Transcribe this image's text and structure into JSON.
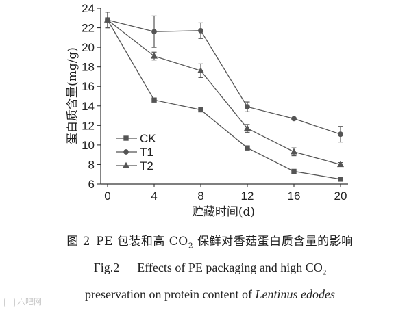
{
  "chart_data": {
    "type": "line",
    "ylabel": "蛋白质含量(mg/g)",
    "xlabel": "贮藏时间(d)",
    "x": [
      0,
      4,
      8,
      12,
      16,
      20
    ],
    "x_ticks": [
      "0",
      "4",
      "8",
      "12",
      "16",
      "20"
    ],
    "y_ticks": [
      "6",
      "8",
      "10",
      "12",
      "14",
      "16",
      "18",
      "20",
      "22",
      "24"
    ],
    "xlim": [
      0,
      20
    ],
    "ylim": [
      6,
      24
    ],
    "grid": false,
    "legend_position": "bottom-left",
    "series": [
      {
        "name": "CK",
        "marker": "square",
        "values": [
          22.8,
          14.6,
          13.6,
          9.7,
          7.3,
          6.5
        ],
        "errors": [
          0.8,
          0.1,
          0.1,
          0.2,
          0.1,
          0.1
        ]
      },
      {
        "name": "T1",
        "marker": "circle",
        "values": [
          22.8,
          21.6,
          21.7,
          13.9,
          12.7,
          11.1
        ],
        "errors": [
          0.8,
          1.6,
          0.8,
          0.5,
          0.1,
          0.8
        ]
      },
      {
        "name": "T2",
        "marker": "triangle",
        "values": [
          22.8,
          19.1,
          17.6,
          11.7,
          9.3,
          8.0
        ],
        "errors": [
          0.8,
          0.4,
          0.7,
          0.4,
          0.4,
          0.2
        ]
      }
    ]
  },
  "caption": {
    "cn_label": "图 2",
    "cn_text_pre": "PE 包装和高 CO",
    "cn_sub": "2",
    "cn_text_post": " 保鲜对香菇蛋白质含量的影响",
    "en_label": "Fig.2",
    "en_line1_pre": "Effects of PE packaging and high CO",
    "en_sub": "2",
    "en_line2_pre": "preservation on protein content of ",
    "en_line2_species": "Lentinus edodes"
  },
  "watermark": {
    "text": "六吧网"
  }
}
